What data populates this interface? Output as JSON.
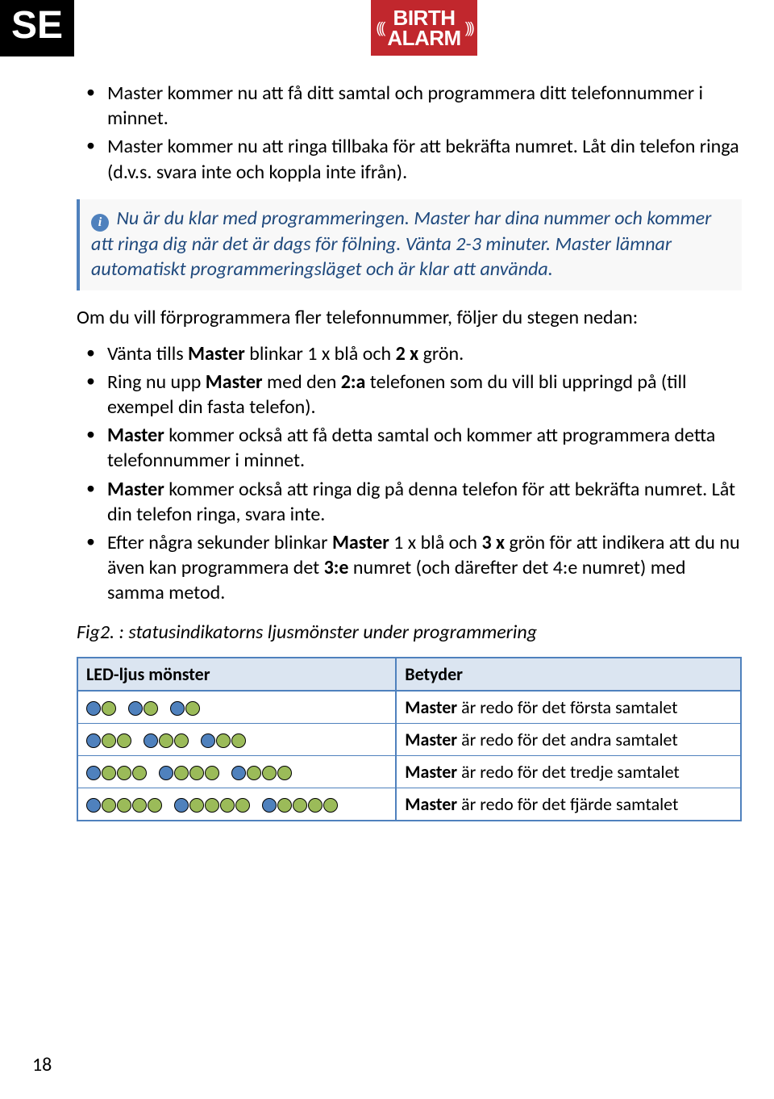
{
  "header": {
    "lang_badge": "SE",
    "logo_line1": "BIRTH",
    "logo_line2": "ALARM"
  },
  "intro_bullets": [
    "Master kommer nu att få ditt samtal och programmera ditt telefonnummer i minnet.",
    "Master kommer nu att ringa tillbaka för att bekräfta numret. Låt din telefon ringa (d.v.s. svara inte och koppla inte ifrån)."
  ],
  "info_box": {
    "part1": "Nu är du klar med programmeringen. ",
    "part2": "Master",
    "part3": " har dina nummer och kommer att ringa dig när det är dags för fölning. Vänta 2-3 minuter. ",
    "part4": "Master",
    "part5": " lämnar automatiskt programmeringsläget och är klar att använda."
  },
  "followup_text": "Om du vill förprogrammera fler telefonnummer, följer du stegen nedan:",
  "second_bullets": [
    {
      "pre": "Vänta tills ",
      "b1": "Master",
      "mid": " blinkar 1 x blå och ",
      "b2": "2 x",
      "post": " grön."
    },
    {
      "pre": "Ring nu upp ",
      "b1": "Master",
      "mid": " med den ",
      "b2": "2:a",
      "post": " telefonen som du vill bli uppringd på (till exempel din fasta telefon)."
    },
    {
      "pre": "",
      "b1": "Master",
      "mid": " kommer också att få detta samtal och kommer att programmera detta telefonnummer i minnet.",
      "b2": "",
      "post": ""
    },
    {
      "pre": "",
      "b1": "Master",
      "mid": " kommer också att ringa dig på denna telefon för att bekräfta numret. Låt din telefon ringa, svara inte.",
      "b2": "",
      "post": ""
    },
    {
      "pre": "Efter några sekunder blinkar ",
      "b1": "Master",
      "mid": " 1 x blå och ",
      "b2": "3 x",
      "post": " grön för att indikera att du nu även kan programmera det ",
      "b3": "3:e",
      "post2": " numret (och därefter det 4:e numret) med samma metod."
    }
  ],
  "fig_caption": "Fig2. : statusindikatorns ljusmönster under programmering",
  "table": {
    "col1": "LED-ljus mönster",
    "col2": "Betyder",
    "rows": [
      {
        "greens": 1,
        "pre": "Master",
        "text": " är redo för det första samtalet"
      },
      {
        "greens": 2,
        "pre": "Master",
        "text": " är redo för det andra samtalet"
      },
      {
        "greens": 3,
        "pre": "Master",
        "text": " är redo för det tredje samtalet"
      },
      {
        "greens": 4,
        "pre": "Master",
        "text": " är redo för det fjärde samtalet"
      }
    ]
  },
  "page_number": "18",
  "colors": {
    "blue_led": "#4f81bd",
    "green_led": "#9bbb59",
    "table_border": "#4f81bd",
    "table_header_bg": "#dbe5f1",
    "info_text": "#1f497d",
    "logo_bg": "#c1272d"
  }
}
